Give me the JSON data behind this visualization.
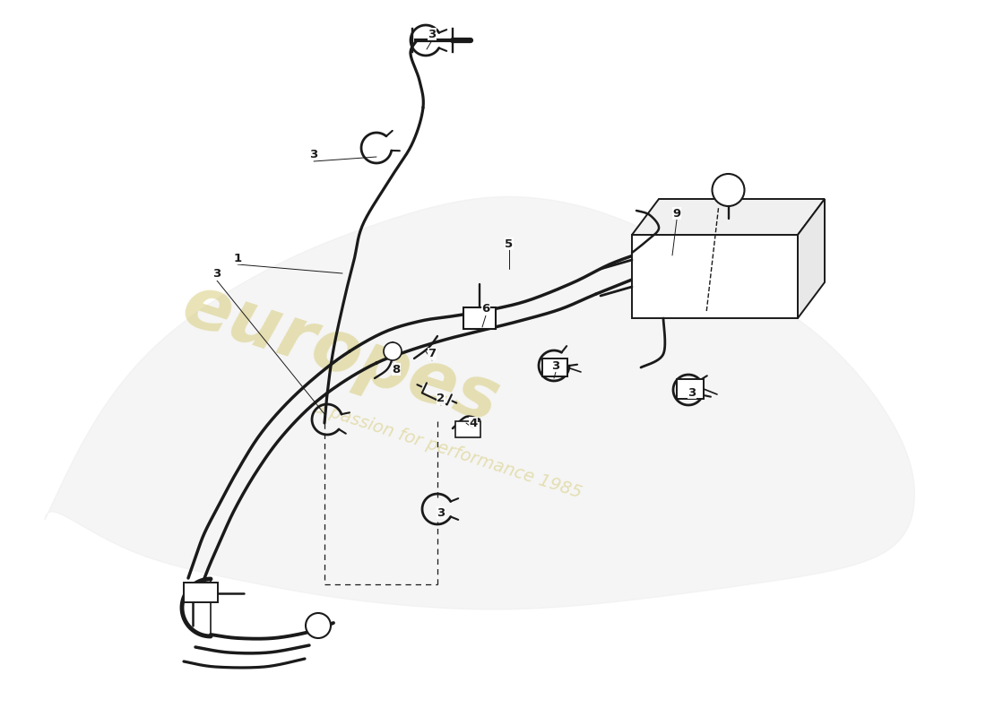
{
  "bg_color": "#ffffff",
  "line_color": "#1a1a1a",
  "watermark_main": "europes",
  "watermark_sub": "a passion for performance 1985",
  "watermark_color": "#d4c870",
  "fig_width": 11.0,
  "fig_height": 8.0,
  "labels": [
    [
      "3",
      4.82,
      7.62
    ],
    [
      "3",
      3.5,
      6.28
    ],
    [
      "3",
      2.42,
      4.94
    ],
    [
      "1",
      2.65,
      5.12
    ],
    [
      "9",
      7.55,
      5.62
    ],
    [
      "5",
      5.68,
      5.28
    ],
    [
      "6",
      5.42,
      4.55
    ],
    [
      "3",
      6.2,
      3.92
    ],
    [
      "3",
      7.72,
      3.62
    ],
    [
      "2",
      4.92,
      3.55
    ],
    [
      "4",
      5.28,
      3.28
    ],
    [
      "7",
      4.82,
      4.05
    ],
    [
      "8",
      4.42,
      3.88
    ],
    [
      "3",
      4.92,
      2.28
    ]
  ]
}
